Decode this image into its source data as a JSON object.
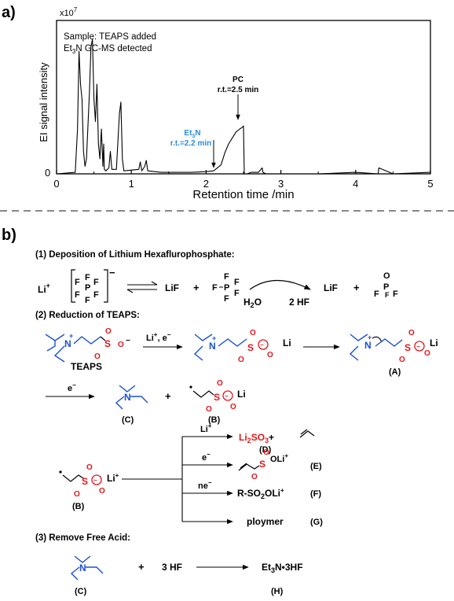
{
  "panel_a": {
    "label": "a)",
    "sample_line": "Sample: TEAPS added",
    "detected_prefix": "Et",
    "detected_sub": "3",
    "detected_suffix": "N GC-MS detected",
    "y_scale": "x10",
    "y_scale_exp": "7",
    "ylabel": "EI signal intensity",
    "xlabel": "Retention time /min",
    "pc_label": "PC",
    "pc_rt": "r.t.=2.5 min",
    "et3n_prefix": "Et",
    "et3n_sub": "3",
    "et3n_suffix": "N",
    "et3n_rt": "r.t.=2.2 min",
    "y_zero": "0"
  },
  "chart_data": {
    "type": "line",
    "title": "",
    "xlabel": "Retention time /min",
    "ylabel": "EI signal intensity",
    "xlim": [
      0,
      5
    ],
    "ylim": [
      0,
      1
    ],
    "x_ticks": [
      "0",
      "1",
      "2",
      "3",
      "4",
      "5"
    ],
    "annotations": [
      "PC r.t.=2.5 min",
      "Et3N r.t.=2.2 min"
    ],
    "series": [
      {
        "x": [
          0.0,
          0.25,
          0.28,
          0.3,
          0.32,
          0.34,
          0.36,
          0.38,
          0.4,
          0.44,
          0.46,
          0.48,
          0.5,
          0.52,
          0.54,
          0.56,
          0.58,
          0.6,
          0.62,
          0.63,
          0.64,
          0.66,
          0.7,
          0.72,
          0.74,
          0.8,
          0.84,
          0.86,
          0.88,
          0.9,
          1.1,
          1.12,
          1.14,
          1.18,
          1.2,
          1.22,
          1.4,
          1.8,
          2.0,
          2.1,
          2.15,
          2.2,
          2.25,
          2.3,
          2.35,
          2.4,
          2.45,
          2.48,
          2.5,
          2.51,
          2.55,
          2.6,
          2.7,
          2.75,
          2.76,
          2.8,
          3.0,
          3.5,
          4.0,
          4.3,
          4.31,
          4.5,
          5.0
        ],
        "y": [
          0.0,
          0.01,
          0.3,
          0.82,
          0.6,
          0.5,
          0.15,
          0.05,
          0.1,
          0.55,
          0.85,
          0.9,
          0.5,
          0.35,
          0.6,
          0.2,
          0.1,
          0.3,
          0.05,
          0.2,
          0.03,
          0.02,
          0.04,
          0.15,
          0.03,
          0.03,
          0.4,
          0.48,
          0.1,
          0.02,
          0.03,
          0.08,
          0.02,
          0.05,
          0.09,
          0.02,
          0.01,
          0.01,
          0.015,
          0.02,
          0.04,
          0.06,
          0.14,
          0.2,
          0.24,
          0.28,
          0.3,
          0.31,
          0.32,
          0.0,
          0.0,
          0.01,
          0.01,
          0.04,
          0.01,
          0.0,
          0.0,
          0.0,
          0.01,
          0.0,
          0.04,
          0.0,
          0.01
        ]
      }
    ]
  },
  "panel_b": {
    "label": "b)",
    "s1_title": "(1) Deposition of Lithium Hexaflurophosphate:",
    "s2_title": "(2) Reduction of TEAPS:",
    "s3_title": "(3) Remove Free Acid:",
    "li": "Li",
    "plus_sign": "+",
    "minus_sign": "−",
    "lif": "LiF",
    "f": "F",
    "p": "P",
    "o": "O",
    "s": "S",
    "n": "N",
    "h2o_h": "H",
    "h2o_sub": "2",
    "h2o_o": "O",
    "two_hf": "2 HF",
    "plus": "+",
    "teaps": "TEAPS",
    "li_e": "Li",
    "li_e_rest": ", e",
    "e_minus": "e",
    "ne_minus": "ne",
    "label_A": "(A)",
    "label_B": "(B)",
    "label_C": "(C)",
    "label_D": "(D)",
    "label_E": "(E)",
    "label_F": "(F)",
    "label_G": "(G)",
    "label_H": "(H)",
    "li2so3_a": "Li",
    "li2so3_sub1": "2",
    "li2so3_b": "SO",
    "li2so3_sub2": "3",
    "li2so3_plus": "+",
    "oli_plus": "OLi",
    "r_so2oli": "R-SO",
    "r_so2oli_sub": "2",
    "r_so2oli_end": "OLi",
    "ploymer": "ploymer",
    "three_hf": "3 HF",
    "et3n3hf_a": "Et",
    "et3n3hf_sub": "3",
    "et3n3hf_b": "N•3HF"
  }
}
